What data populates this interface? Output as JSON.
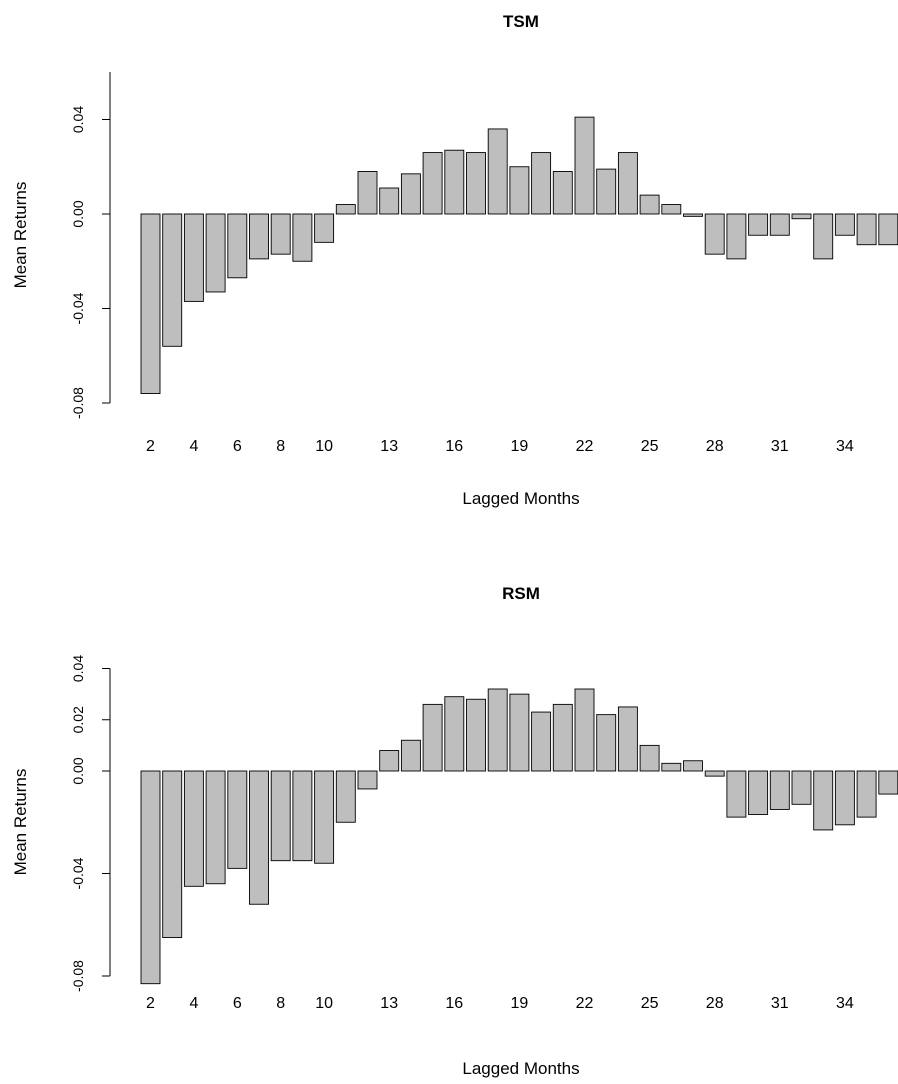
{
  "chart_data": [
    {
      "type": "bar",
      "title": "TSM",
      "xlabel": "Lagged Months",
      "ylabel": "Mean Returns",
      "ylim": [
        -0.08,
        0.06
      ],
      "yticks": [
        "-0.08",
        "-0.04",
        "0.00",
        "0.04"
      ],
      "xtick_labels": [
        "2",
        "4",
        "6",
        "8",
        "10",
        "13",
        "16",
        "19",
        "22",
        "25",
        "28",
        "31",
        "34"
      ],
      "categories": [
        2,
        3,
        4,
        5,
        6,
        7,
        8,
        9,
        10,
        11,
        12,
        13,
        14,
        15,
        16,
        17,
        18,
        19,
        20,
        21,
        22,
        23,
        24,
        25,
        26,
        27,
        28,
        29,
        30,
        31,
        32,
        33,
        34,
        35,
        36
      ],
      "values": [
        -0.076,
        -0.056,
        -0.037,
        -0.033,
        -0.027,
        -0.019,
        -0.017,
        -0.02,
        -0.012,
        0.004,
        0.018,
        0.011,
        0.017,
        0.026,
        0.027,
        0.026,
        0.036,
        0.02,
        0.026,
        0.018,
        0.041,
        0.019,
        0.026,
        0.008,
        0.004,
        -0.001,
        -0.017,
        -0.019,
        -0.009,
        -0.009,
        -0.002,
        -0.019,
        -0.009,
        -0.013,
        -0.013
      ],
      "bar_color": "#bebebe",
      "grid": false
    },
    {
      "type": "bar",
      "title": "RSM",
      "xlabel": "Lagged Months",
      "ylabel": "Mean Returns",
      "ylim": [
        -0.084,
        0.04
      ],
      "yticks": [
        "-0.08",
        "-0.04",
        "0.00",
        "0.02",
        "0.04"
      ],
      "xtick_labels": [
        "2",
        "4",
        "6",
        "8",
        "10",
        "13",
        "16",
        "19",
        "22",
        "25",
        "28",
        "31",
        "34"
      ],
      "categories": [
        2,
        3,
        4,
        5,
        6,
        7,
        8,
        9,
        10,
        11,
        12,
        13,
        14,
        15,
        16,
        17,
        18,
        19,
        20,
        21,
        22,
        23,
        24,
        25,
        26,
        27,
        28,
        29,
        30,
        31,
        32,
        33,
        34,
        35,
        36
      ],
      "values": [
        -0.083,
        -0.065,
        -0.045,
        -0.044,
        -0.038,
        -0.052,
        -0.035,
        -0.035,
        -0.036,
        -0.02,
        -0.007,
        0.008,
        0.012,
        0.026,
        0.029,
        0.028,
        0.032,
        0.03,
        0.023,
        0.026,
        0.032,
        0.022,
        0.025,
        0.01,
        0.003,
        0.004,
        -0.002,
        -0.018,
        -0.017,
        -0.015,
        -0.013,
        -0.023,
        -0.021,
        -0.018,
        -0.009
      ],
      "bar_color": "#bebebe",
      "grid": false
    }
  ]
}
